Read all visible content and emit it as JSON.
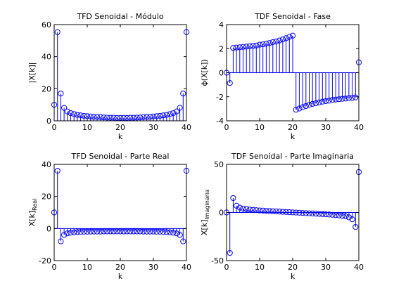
{
  "chart_data": [
    {
      "type": "stem",
      "title": "TFD Senoidal - Módulo",
      "xlabel": "k",
      "ylabel": "|X[k]|",
      "color": "#0000ff",
      "x": [
        0,
        1,
        2,
        3,
        4,
        5,
        6,
        7,
        8,
        9,
        10,
        11,
        12,
        13,
        14,
        15,
        16,
        17,
        18,
        19,
        20,
        21,
        22,
        23,
        24,
        25,
        26,
        27,
        28,
        29,
        30,
        31,
        32,
        33,
        34,
        35,
        36,
        37,
        38,
        39,
        40
      ],
      "values": [
        10,
        55.3,
        17,
        8.1,
        5.8,
        4.8,
        4.2,
        3.7,
        3.4,
        3.1,
        2.9,
        2.7,
        2.5,
        2.4,
        2.3,
        2.1,
        2.0,
        1.9,
        1.9,
        1.8,
        1.8,
        1.8,
        1.8,
        1.9,
        1.9,
        2.0,
        2.1,
        2.3,
        2.4,
        2.5,
        2.7,
        2.9,
        3.1,
        3.4,
        3.7,
        4.2,
        4.8,
        5.8,
        8.1,
        17,
        55.3
      ],
      "xlim": [
        0,
        40
      ],
      "xticks": [
        0,
        10,
        20,
        30,
        40
      ],
      "ylim": [
        0,
        60
      ],
      "yticks": [
        0,
        20,
        40,
        60
      ]
    },
    {
      "type": "stem",
      "title": "TDF Senoidal - Fase",
      "xlabel": "k",
      "ylabel": "ϕ(X[k])",
      "color": "#0000ff",
      "x": [
        0,
        1,
        2,
        3,
        4,
        5,
        6,
        7,
        8,
        9,
        10,
        11,
        12,
        13,
        14,
        15,
        16,
        17,
        18,
        19,
        20,
        21,
        22,
        23,
        24,
        25,
        26,
        27,
        28,
        29,
        30,
        31,
        32,
        33,
        34,
        35,
        36,
        37,
        38,
        39,
        40
      ],
      "values": [
        0,
        -0.86,
        2.06,
        2.09,
        2.11,
        2.15,
        2.17,
        2.2,
        2.23,
        2.26,
        2.33,
        2.36,
        2.41,
        2.47,
        2.54,
        2.59,
        2.68,
        2.77,
        2.87,
        2.98,
        3.08,
        -3.08,
        -2.98,
        -2.87,
        -2.77,
        -2.68,
        -2.59,
        -2.54,
        -2.47,
        -2.41,
        -2.36,
        -2.33,
        -2.26,
        -2.23,
        -2.2,
        -2.17,
        -2.15,
        -2.11,
        -2.09,
        -2.06,
        0.86
      ],
      "xlim": [
        0,
        40
      ],
      "xticks": [
        0,
        10,
        20,
        30,
        40
      ],
      "ylim": [
        -4,
        4
      ],
      "yticks": [
        -4,
        -2,
        0,
        2,
        4
      ]
    },
    {
      "type": "stem",
      "title": "TFD Senoidal - Parte Real",
      "xlabel": "k",
      "ylabel": "X[k]",
      "ylabel_sub": "Real",
      "color": "#0000ff",
      "x": [
        0,
        1,
        2,
        3,
        4,
        5,
        6,
        7,
        8,
        9,
        10,
        11,
        12,
        13,
        14,
        15,
        16,
        17,
        18,
        19,
        20,
        21,
        22,
        23,
        24,
        25,
        26,
        27,
        28,
        29,
        30,
        31,
        32,
        33,
        34,
        35,
        36,
        37,
        38,
        39,
        40
      ],
      "values": [
        10,
        36,
        -8,
        -4,
        -3,
        -2.6,
        -2.4,
        -2.2,
        -2.1,
        -2,
        -2,
        -1.9,
        -1.9,
        -1.9,
        -1.9,
        -1.8,
        -1.8,
        -1.8,
        -1.8,
        -1.8,
        -1.8,
        -1.8,
        -1.8,
        -1.8,
        -1.8,
        -1.8,
        -1.8,
        -1.9,
        -1.9,
        -1.9,
        -1.9,
        -2,
        -2,
        -2.1,
        -2.2,
        -2.4,
        -2.6,
        -3,
        -4,
        -8,
        36
      ],
      "xlim": [
        0,
        40
      ],
      "xticks": [
        0,
        10,
        20,
        30,
        40
      ],
      "ylim": [
        -20,
        40
      ],
      "yticks": [
        -20,
        0,
        20,
        40
      ]
    },
    {
      "type": "stem",
      "title": "TDF Senoidal - Parte Imaginaria",
      "xlabel": "k",
      "ylabel": "X[k]",
      "ylabel_sub": "Imaginaria",
      "color": "#0000ff",
      "x": [
        0,
        1,
        2,
        3,
        4,
        5,
        6,
        7,
        8,
        9,
        10,
        11,
        12,
        13,
        14,
        15,
        16,
        17,
        18,
        19,
        20,
        21,
        22,
        23,
        24,
        25,
        26,
        27,
        28,
        29,
        30,
        31,
        32,
        33,
        34,
        35,
        36,
        37,
        38,
        39,
        40
      ],
      "values": [
        0,
        -42,
        15,
        7,
        5,
        4,
        3.5,
        3,
        2.7,
        2.4,
        2.1,
        1.9,
        1.7,
        1.5,
        1.3,
        1.1,
        0.9,
        0.7,
        0.5,
        0.3,
        0.1,
        -0.1,
        -0.3,
        -0.5,
        -0.7,
        -0.9,
        -1.1,
        -1.3,
        -1.5,
        -1.7,
        -1.9,
        -2.1,
        -2.4,
        -2.7,
        -3,
        -3.5,
        -4,
        -5,
        -7,
        -15,
        42
      ],
      "xlim": [
        0,
        40
      ],
      "xticks": [
        0,
        10,
        20,
        30,
        40
      ],
      "ylim": [
        -50,
        50
      ],
      "yticks": [
        -50,
        0,
        50
      ]
    }
  ]
}
